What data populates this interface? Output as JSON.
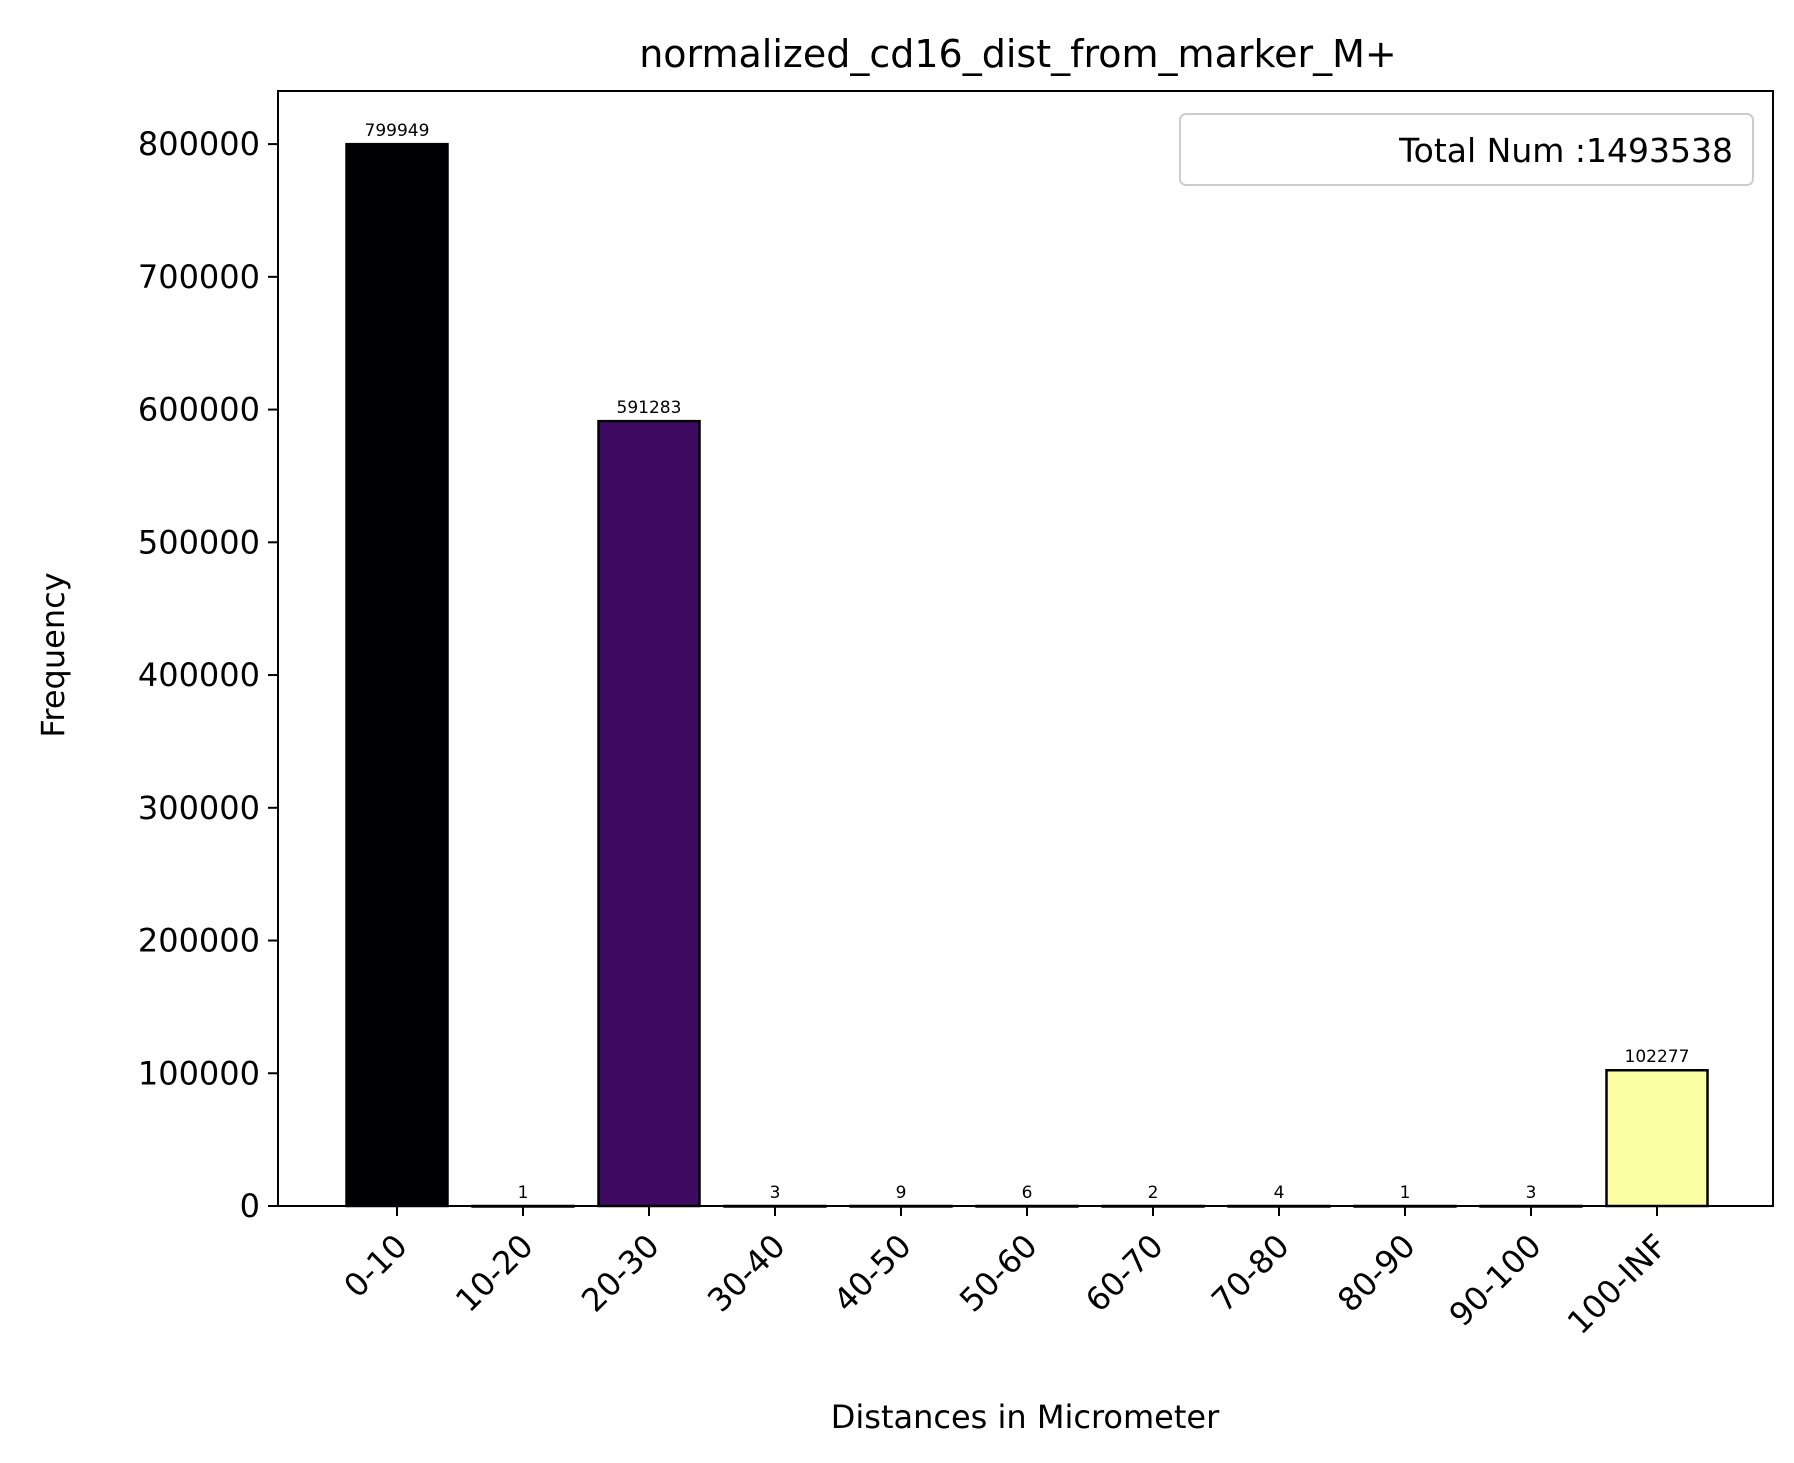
{
  "chart_data": {
    "type": "bar",
    "title": "normalized_cd16_dist_from_marker_M+",
    "xlabel": "Distances in Micrometer",
    "ylabel": "Frequency",
    "categories": [
      "0-10",
      "10-20",
      "20-30",
      "30-40",
      "40-50",
      "50-60",
      "60-70",
      "70-80",
      "80-90",
      "90-100",
      "100-INF"
    ],
    "values": [
      799949,
      1,
      591283,
      3,
      9,
      6,
      2,
      4,
      1,
      3,
      102277
    ],
    "data_labels": [
      "799949",
      "1",
      "591283",
      "3",
      "9",
      "6",
      "2",
      "4",
      "1",
      "3",
      "102277"
    ],
    "bar_colors": [
      "#000004",
      "#000004",
      "#3f0a61",
      "#000004",
      "#000004",
      "#000004",
      "#000004",
      "#000004",
      "#000004",
      "#000004",
      "#fcffa4"
    ],
    "ylim": [
      0,
      840000
    ],
    "yticks": [
      0,
      100000,
      200000,
      300000,
      400000,
      500000,
      600000,
      700000,
      800000
    ],
    "ytick_labels": [
      "0",
      "100000",
      "200000",
      "300000",
      "400000",
      "500000",
      "600000",
      "700000",
      "800000"
    ],
    "legend": {
      "text": "Total Num :1493538",
      "placement": "top-right"
    },
    "grid": false
  }
}
